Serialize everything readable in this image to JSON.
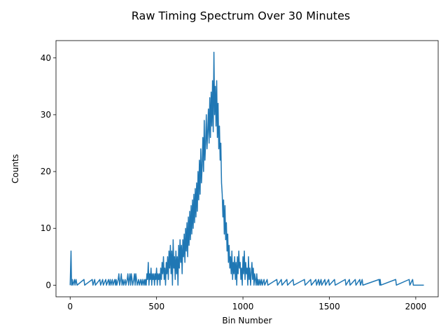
{
  "chart_data": {
    "type": "line",
    "title": "Raw Timing Spectrum Over 30 Minutes",
    "xlabel": "Bin Number",
    "ylabel": "Counts",
    "xlim": [
      -82,
      2130
    ],
    "ylim": [
      -2.05,
      43.05
    ],
    "xticks": [
      0,
      500,
      1000,
      1500,
      2000
    ],
    "yticks": [
      0,
      10,
      20,
      30,
      40
    ],
    "grid": false,
    "legend": "none",
    "series": [
      {
        "name": "Counts",
        "color": "#1f77b4",
        "points": [
          [
            0,
            0
          ],
          [
            5,
            6
          ],
          [
            8,
            0
          ],
          [
            12,
            1
          ],
          [
            16,
            0
          ],
          [
            25,
            1
          ],
          [
            28,
            0
          ],
          [
            34,
            1
          ],
          [
            40,
            0
          ],
          [
            80,
            1
          ],
          [
            84,
            0
          ],
          [
            128,
            1
          ],
          [
            132,
            0
          ],
          [
            142,
            1
          ],
          [
            146,
            0
          ],
          [
            172,
            1
          ],
          [
            176,
            0
          ],
          [
            188,
            1
          ],
          [
            192,
            0
          ],
          [
            206,
            1
          ],
          [
            210,
            0
          ],
          [
            222,
            1
          ],
          [
            226,
            0
          ],
          [
            232,
            1
          ],
          [
            236,
            0
          ],
          [
            244,
            1
          ],
          [
            248,
            0
          ],
          [
            258,
            1
          ],
          [
            262,
            0
          ],
          [
            266,
            1
          ],
          [
            270,
            0
          ],
          [
            278,
            1
          ],
          [
            282,
            2
          ],
          [
            286,
            0
          ],
          [
            292,
            1
          ],
          [
            296,
            2
          ],
          [
            300,
            0
          ],
          [
            306,
            1
          ],
          [
            310,
            0
          ],
          [
            318,
            1
          ],
          [
            322,
            0
          ],
          [
            330,
            1
          ],
          [
            334,
            2
          ],
          [
            338,
            0
          ],
          [
            342,
            1
          ],
          [
            346,
            2
          ],
          [
            350,
            0
          ],
          [
            354,
            2
          ],
          [
            358,
            1
          ],
          [
            362,
            0
          ],
          [
            368,
            1
          ],
          [
            372,
            2
          ],
          [
            376,
            0
          ],
          [
            380,
            2
          ],
          [
            384,
            1
          ],
          [
            388,
            0
          ],
          [
            396,
            1
          ],
          [
            400,
            0
          ],
          [
            408,
            1
          ],
          [
            412,
            0
          ],
          [
            418,
            1
          ],
          [
            422,
            0
          ],
          [
            428,
            1
          ],
          [
            432,
            0
          ],
          [
            436,
            1
          ],
          [
            440,
            0
          ],
          [
            444,
            2
          ],
          [
            448,
            1
          ],
          [
            452,
            4
          ],
          [
            456,
            0
          ],
          [
            460,
            2
          ],
          [
            464,
            1
          ],
          [
            468,
            3
          ],
          [
            472,
            0
          ],
          [
            476,
            2
          ],
          [
            480,
            1
          ],
          [
            484,
            2
          ],
          [
            488,
            0
          ],
          [
            492,
            2
          ],
          [
            496,
            1
          ],
          [
            500,
            3
          ],
          [
            504,
            0
          ],
          [
            508,
            2
          ],
          [
            512,
            1
          ],
          [
            516,
            2
          ],
          [
            520,
            0
          ],
          [
            524,
            3
          ],
          [
            528,
            1
          ],
          [
            532,
            4
          ],
          [
            536,
            2
          ],
          [
            540,
            5
          ],
          [
            544,
            1
          ],
          [
            548,
            3
          ],
          [
            552,
            0
          ],
          [
            556,
            4
          ],
          [
            560,
            2
          ],
          [
            564,
            5
          ],
          [
            568,
            1
          ],
          [
            572,
            6
          ],
          [
            576,
            3
          ],
          [
            580,
            7
          ],
          [
            584,
            2
          ],
          [
            588,
            6
          ],
          [
            592,
            0
          ],
          [
            596,
            8
          ],
          [
            600,
            3
          ],
          [
            604,
            5
          ],
          [
            608,
            1
          ],
          [
            612,
            6
          ],
          [
            616,
            2
          ],
          [
            620,
            5
          ],
          [
            624,
            0
          ],
          [
            628,
            7
          ],
          [
            632,
            3
          ],
          [
            636,
            8
          ],
          [
            640,
            4
          ],
          [
            644,
            7
          ],
          [
            648,
            2
          ],
          [
            652,
            8
          ],
          [
            656,
            5
          ],
          [
            660,
            9
          ],
          [
            664,
            4
          ],
          [
            668,
            10
          ],
          [
            672,
            6
          ],
          [
            676,
            11
          ],
          [
            680,
            5
          ],
          [
            684,
            12
          ],
          [
            688,
            7
          ],
          [
            692,
            13
          ],
          [
            696,
            8
          ],
          [
            700,
            14
          ],
          [
            704,
            9
          ],
          [
            708,
            15
          ],
          [
            712,
            10
          ],
          [
            716,
            16
          ],
          [
            720,
            11
          ],
          [
            724,
            17
          ],
          [
            728,
            12
          ],
          [
            732,
            18
          ],
          [
            736,
            13
          ],
          [
            740,
            20
          ],
          [
            744,
            15
          ],
          [
            748,
            22
          ],
          [
            752,
            16
          ],
          [
            756,
            24
          ],
          [
            760,
            18
          ],
          [
            764,
            21
          ],
          [
            768,
            26
          ],
          [
            772,
            20
          ],
          [
            776,
            29
          ],
          [
            780,
            22
          ],
          [
            784,
            25
          ],
          [
            788,
            30
          ],
          [
            792,
            24
          ],
          [
            796,
            27
          ],
          [
            800,
            31
          ],
          [
            804,
            25
          ],
          [
            808,
            33
          ],
          [
            812,
            26
          ],
          [
            816,
            34
          ],
          [
            820,
            28
          ],
          [
            824,
            36
          ],
          [
            828,
            27
          ],
          [
            832,
            41
          ],
          [
            836,
            30
          ],
          [
            840,
            35
          ],
          [
            844,
            28
          ],
          [
            848,
            36
          ],
          [
            852,
            26
          ],
          [
            856,
            32
          ],
          [
            860,
            24
          ],
          [
            864,
            28
          ],
          [
            868,
            22
          ],
          [
            872,
            25
          ],
          [
            876,
            18
          ],
          [
            880,
            16
          ],
          [
            884,
            12
          ],
          [
            888,
            15
          ],
          [
            892,
            9
          ],
          [
            896,
            14
          ],
          [
            900,
            8
          ],
          [
            904,
            11
          ],
          [
            908,
            6
          ],
          [
            912,
            9
          ],
          [
            916,
            4
          ],
          [
            920,
            7
          ],
          [
            924,
            3
          ],
          [
            928,
            5
          ],
          [
            932,
            2
          ],
          [
            936,
            6
          ],
          [
            940,
            1
          ],
          [
            944,
            4
          ],
          [
            948,
            2
          ],
          [
            952,
            5
          ],
          [
            956,
            1
          ],
          [
            960,
            4
          ],
          [
            964,
            0
          ],
          [
            968,
            5
          ],
          [
            972,
            2
          ],
          [
            976,
            6
          ],
          [
            980,
            3
          ],
          [
            984,
            4
          ],
          [
            988,
            1
          ],
          [
            992,
            3
          ],
          [
            996,
            0
          ],
          [
            1000,
            5
          ],
          [
            1004,
            2
          ],
          [
            1008,
            6
          ],
          [
            1012,
            1
          ],
          [
            1016,
            4
          ],
          [
            1020,
            2
          ],
          [
            1024,
            3
          ],
          [
            1028,
            0
          ],
          [
            1032,
            5
          ],
          [
            1036,
            1
          ],
          [
            1040,
            3
          ],
          [
            1044,
            0
          ],
          [
            1048,
            2
          ],
          [
            1052,
            4
          ],
          [
            1056,
            1
          ],
          [
            1060,
            3
          ],
          [
            1064,
            0
          ],
          [
            1068,
            2
          ],
          [
            1072,
            1
          ],
          [
            1076,
            0
          ],
          [
            1080,
            2
          ],
          [
            1084,
            0
          ],
          [
            1088,
            1
          ],
          [
            1092,
            0
          ],
          [
            1098,
            1
          ],
          [
            1102,
            0
          ],
          [
            1108,
            1
          ],
          [
            1112,
            0
          ],
          [
            1122,
            1
          ],
          [
            1126,
            0
          ],
          [
            1140,
            1
          ],
          [
            1144,
            0
          ],
          [
            1196,
            1
          ],
          [
            1200,
            0
          ],
          [
            1222,
            1
          ],
          [
            1226,
            0
          ],
          [
            1254,
            1
          ],
          [
            1258,
            0
          ],
          [
            1290,
            1
          ],
          [
            1294,
            0
          ],
          [
            1356,
            1
          ],
          [
            1360,
            0
          ],
          [
            1392,
            1
          ],
          [
            1396,
            0
          ],
          [
            1422,
            1
          ],
          [
            1426,
            0
          ],
          [
            1438,
            1
          ],
          [
            1442,
            0
          ],
          [
            1452,
            1
          ],
          [
            1456,
            0
          ],
          [
            1474,
            1
          ],
          [
            1478,
            0
          ],
          [
            1496,
            1
          ],
          [
            1500,
            0
          ],
          [
            1530,
            1
          ],
          [
            1534,
            0
          ],
          [
            1592,
            1
          ],
          [
            1596,
            0
          ],
          [
            1616,
            1
          ],
          [
            1620,
            0
          ],
          [
            1650,
            1
          ],
          [
            1654,
            0
          ],
          [
            1676,
            1
          ],
          [
            1680,
            0
          ],
          [
            1690,
            1
          ],
          [
            1694,
            0
          ],
          [
            1788,
            1
          ],
          [
            1792,
            0
          ],
          [
            1794,
            1
          ],
          [
            1798,
            0
          ],
          [
            1884,
            1
          ],
          [
            1888,
            0
          ],
          [
            1962,
            1
          ],
          [
            1966,
            0
          ],
          [
            1982,
            1
          ],
          [
            1986,
            0
          ],
          [
            2047,
            0
          ]
        ]
      }
    ]
  }
}
